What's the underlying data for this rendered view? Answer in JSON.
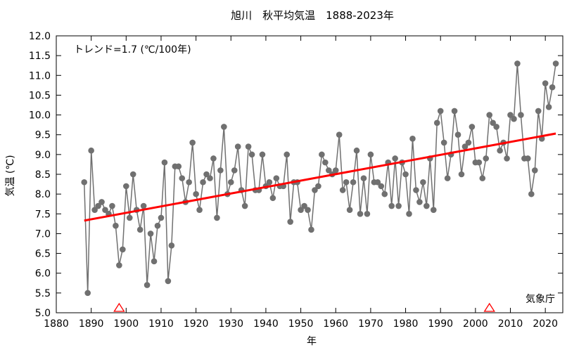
{
  "chart_data": {
    "type": "line",
    "title": "旭川　秋平均気温　1888-2023年",
    "xlabel": "年",
    "ylabel": "気温 (℃)",
    "xlim": [
      1880,
      2025
    ],
    "ylim": [
      5.0,
      12.0
    ],
    "x_ticks": [
      "1880",
      "1890",
      "1900",
      "1910",
      "1920",
      "1930",
      "1940",
      "1950",
      "1960",
      "1970",
      "1980",
      "1990",
      "2000",
      "2010",
      "2020"
    ],
    "y_ticks": [
      "5.0",
      "5.5",
      "6.0",
      "6.5",
      "7.0",
      "7.5",
      "8.0",
      "8.5",
      "9.0",
      "9.5",
      "10.0",
      "10.5",
      "11.0",
      "11.5",
      "12.0"
    ],
    "trend_label": "トレンド=1.7 (℃/100年)",
    "source_label": "気象庁",
    "grid": false,
    "series": [
      {
        "color": "#707070",
        "x": [
          1888,
          1889,
          1890,
          1891,
          1892,
          1893,
          1894,
          1895,
          1896,
          1897,
          1898,
          1899,
          1900,
          1901,
          1902,
          1903,
          1904,
          1905,
          1906,
          1907,
          1908,
          1909,
          1910,
          1911,
          1912,
          1913,
          1914,
          1915,
          1916,
          1917,
          1918,
          1919,
          1920,
          1921,
          1922,
          1923,
          1924,
          1925,
          1926,
          1927,
          1928,
          1929,
          1930,
          1931,
          1932,
          1933,
          1934,
          1935,
          1936,
          1937,
          1938,
          1939,
          1940,
          1941,
          1942,
          1943,
          1944,
          1945,
          1946,
          1947,
          1948,
          1949,
          1950,
          1951,
          1952,
          1953,
          1954,
          1955,
          1956,
          1957,
          1958,
          1959,
          1960,
          1961,
          1962,
          1963,
          1964,
          1965,
          1966,
          1967,
          1968,
          1969,
          1970,
          1971,
          1972,
          1973,
          1974,
          1975,
          1976,
          1977,
          1978,
          1979,
          1980,
          1981,
          1982,
          1983,
          1984,
          1985,
          1986,
          1987,
          1988,
          1989,
          1990,
          1991,
          1992,
          1993,
          1994,
          1995,
          1996,
          1997,
          1998,
          1999,
          2000,
          2001,
          2002,
          2003,
          2004,
          2005,
          2006,
          2007,
          2008,
          2009,
          2010,
          2011,
          2012,
          2013,
          2014,
          2015,
          2016,
          2017,
          2018,
          2019,
          2020,
          2021,
          2022,
          2023
        ],
        "values": [
          8.3,
          5.5,
          9.1,
          7.6,
          7.7,
          7.8,
          7.6,
          7.5,
          7.7,
          7.2,
          6.2,
          6.6,
          8.2,
          7.4,
          8.5,
          7.6,
          7.1,
          7.7,
          5.7,
          7.0,
          6.3,
          7.2,
          7.4,
          8.8,
          5.8,
          6.7,
          8.7,
          8.7,
          8.4,
          7.8,
          8.3,
          9.3,
          8.0,
          7.6,
          8.3,
          8.5,
          8.4,
          8.9,
          7.4,
          8.6,
          9.7,
          8.0,
          8.3,
          8.6,
          9.2,
          8.1,
          7.7,
          9.2,
          9.0,
          8.1,
          8.1,
          9.0,
          8.2,
          8.3,
          7.9,
          8.4,
          8.2,
          8.2,
          9.0,
          7.3,
          8.3,
          8.3,
          7.6,
          7.7,
          7.6,
          7.1,
          8.1,
          8.2,
          9.0,
          8.8,
          8.6,
          8.5,
          8.6,
          9.5,
          8.1,
          8.3,
          7.6,
          8.3,
          9.1,
          7.5,
          8.4,
          7.5,
          9.0,
          8.3,
          8.3,
          8.2,
          8.0,
          8.8,
          7.7,
          8.9,
          7.7,
          8.8,
          8.5,
          7.5,
          9.4,
          8.1,
          7.8,
          8.3,
          7.7,
          8.9,
          7.6,
          9.8,
          10.1,
          9.3,
          8.4,
          9.0,
          10.1,
          9.5,
          8.5,
          9.2,
          9.3,
          9.7,
          8.8,
          8.8,
          8.4,
          8.9,
          10.0,
          9.8,
          9.7,
          9.1,
          9.3,
          8.9,
          10.0,
          9.9,
          11.3,
          10.0,
          8.9,
          8.9,
          8.0,
          8.6,
          10.1,
          9.4,
          10.8,
          10.2,
          10.7,
          11.3
        ]
      }
    ],
    "trend_line": {
      "color": "#ff0000",
      "x": [
        1888,
        2023
      ],
      "y": [
        7.33,
        9.53
      ]
    },
    "station_change_markers": {
      "color": "#ff0000",
      "x": [
        1898,
        2004
      ]
    }
  }
}
